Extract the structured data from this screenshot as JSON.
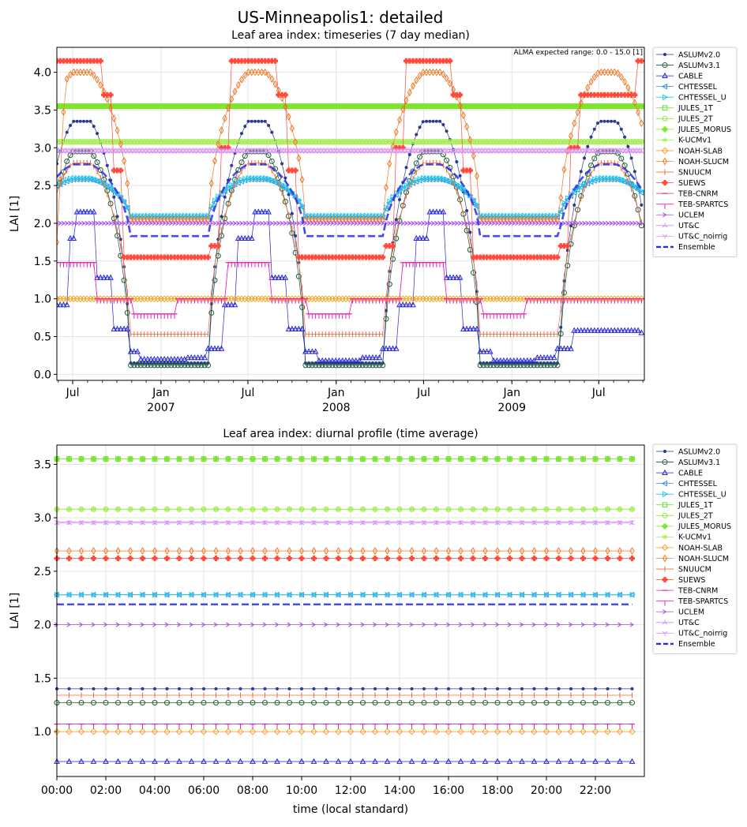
{
  "figure": {
    "title": "US-Minneapolis1: detailed"
  },
  "chart_data": [
    {
      "type": "line",
      "title": "Leaf area index: timeseries (7 day median)",
      "xlabel": "",
      "ylabel": "LAI [1]",
      "annotation": "ALMA expected range: 0.0 - 15.0 [1]",
      "xlim": [
        "2006-05-29",
        "2009-10-04"
      ],
      "ylim": [
        -0.08,
        4.33
      ],
      "yticks": [
        0.0,
        0.5,
        1.0,
        1.5,
        2.0,
        2.5,
        3.0,
        3.5,
        4.0
      ],
      "ytick_labels": [
        "0.0",
        "0.5",
        "1.0",
        "1.5",
        "2.0",
        "2.5",
        "3.0",
        "3.5",
        "4.0"
      ],
      "xtick_labels": [
        {
          "date": "2006-07-01",
          "line1": "Jul",
          "line2": ""
        },
        {
          "date": "2007-01-01",
          "line1": "Jan",
          "line2": "2007"
        },
        {
          "date": "2007-07-01",
          "line1": "Jul",
          "line2": ""
        },
        {
          "date": "2008-01-01",
          "line1": "Jan",
          "line2": "2008"
        },
        {
          "date": "2008-07-01",
          "line1": "Jul",
          "line2": ""
        },
        {
          "date": "2009-01-01",
          "line1": "Jan",
          "line2": "2009"
        },
        {
          "date": "2009-07-01",
          "line1": "Jul",
          "line2": ""
        }
      ],
      "minor_ticks_monthly": true,
      "grid": true,
      "legend": "outside-right",
      "series": [
        {
          "name": "ASLUMv2.0",
          "color": "#2b3a8f",
          "marker": "dot",
          "seasonal": {
            "summer": 3.35,
            "winter": 0.15,
            "peak_early": 3.45
          }
        },
        {
          "name": "ASLUMv3.1",
          "color": "#1e5c3a",
          "marker": "circle",
          "seasonal": {
            "summer": 2.95,
            "winter": 0.12,
            "start": 2.5
          }
        },
        {
          "name": "CABLE",
          "color": "#2323d6",
          "marker": "triangle-up",
          "steps": [
            {
              "from": "2006-05-29",
              "v": 0.92
            },
            {
              "from": "2006-06-22",
              "v": 1.8
            },
            {
              "from": "2006-07-10",
              "v": 2.15
            },
            {
              "from": "2006-08-15",
              "v": 1.28
            },
            {
              "from": "2006-09-20",
              "v": 0.6
            },
            {
              "from": "2006-10-25",
              "v": 0.3
            },
            {
              "from": "2006-11-20",
              "v": 0.2
            },
            {
              "from": "2007-02-20",
              "v": 0.22
            },
            {
              "from": "2007-04-05",
              "v": 0.34
            },
            {
              "from": "2007-05-10",
              "v": 0.92
            },
            {
              "from": "2007-06-10",
              "v": 1.8
            },
            {
              "from": "2007-07-10",
              "v": 2.15
            },
            {
              "from": "2007-08-15",
              "v": 1.28
            },
            {
              "from": "2007-09-20",
              "v": 0.6
            },
            {
              "from": "2007-10-25",
              "v": 0.3
            },
            {
              "from": "2007-11-20",
              "v": 0.18
            },
            {
              "from": "2008-02-20",
              "v": 0.22
            },
            {
              "from": "2008-04-05",
              "v": 0.34
            },
            {
              "from": "2008-05-10",
              "v": 0.92
            },
            {
              "from": "2008-06-10",
              "v": 1.8
            },
            {
              "from": "2008-07-10",
              "v": 2.15
            },
            {
              "from": "2008-08-15",
              "v": 1.28
            },
            {
              "from": "2008-09-20",
              "v": 0.6
            },
            {
              "from": "2008-10-25",
              "v": 0.3
            },
            {
              "from": "2008-11-20",
              "v": 0.18
            },
            {
              "from": "2009-02-20",
              "v": 0.22
            },
            {
              "from": "2009-04-05",
              "v": 0.34
            },
            {
              "from": "2009-05-10",
              "v": 0.58
            },
            {
              "from": "2009-09-25",
              "v": 0.55
            }
          ]
        },
        {
          "name": "CHTESSEL",
          "color": "#2e8fd6",
          "marker": "triangle-left",
          "seasonal": {
            "summer": 2.58,
            "winter": 2.08
          }
        },
        {
          "name": "CHTESSEL_U",
          "color": "#1ec8f0",
          "marker": "triangle-right",
          "seasonal": {
            "summer": 2.6,
            "winter": 2.1
          }
        },
        {
          "name": "JULES_1T",
          "color": "#55e61e",
          "marker": "square",
          "constant": 3.55
        },
        {
          "name": "JULES_2T",
          "color": "#8ee63c",
          "marker": "circle",
          "constant": 3.08
        },
        {
          "name": "JULES_MORUS",
          "color": "#7ee628",
          "marker": "plus-filled",
          "constant": 3.55
        },
        {
          "name": "K-UCMv1",
          "color": "#a8f050",
          "marker": "star",
          "constant": 3.08
        },
        {
          "name": "NOAH-SLAB",
          "color": "#f5a623",
          "marker": "diamond",
          "constant": 1.0
        },
        {
          "name": "NOAH-SLUCM",
          "color": "#f07a28",
          "marker": "thin-diamond",
          "seasonal": {
            "summer": 4.0,
            "winter": 2.05,
            "start": 1.75
          }
        },
        {
          "name": "SNUUCM",
          "color": "#f06a3a",
          "marker": "vline",
          "seasonal": {
            "summer": 2.8,
            "winter": 0.53
          }
        },
        {
          "name": "SUEWS",
          "color": "#ff4a3a",
          "marker": "plus-filled",
          "steps": [
            {
              "from": "2006-05-29",
              "v": 4.15
            },
            {
              "from": "2006-09-01",
              "v": 3.7
            },
            {
              "from": "2006-09-20",
              "v": 2.7
            },
            {
              "from": "2006-10-10",
              "v": 1.55
            },
            {
              "from": "2007-04-10",
              "v": 1.7
            },
            {
              "from": "2007-05-01",
              "v": 3.0
            },
            {
              "from": "2007-05-25",
              "v": 4.15
            },
            {
              "from": "2007-09-01",
              "v": 3.7
            },
            {
              "from": "2007-09-20",
              "v": 2.7
            },
            {
              "from": "2007-10-10",
              "v": 1.55
            },
            {
              "from": "2008-04-10",
              "v": 1.7
            },
            {
              "from": "2008-05-01",
              "v": 3.0
            },
            {
              "from": "2008-05-25",
              "v": 4.15
            },
            {
              "from": "2008-09-01",
              "v": 3.7
            },
            {
              "from": "2008-09-20",
              "v": 2.7
            },
            {
              "from": "2008-10-10",
              "v": 1.55
            },
            {
              "from": "2009-04-10",
              "v": 1.7
            },
            {
              "from": "2009-05-01",
              "v": 3.0
            },
            {
              "from": "2009-05-20",
              "v": 3.7
            },
            {
              "from": "2009-09-15",
              "v": 4.15
            }
          ]
        },
        {
          "name": "TEB-CNRM",
          "color": "#e6287a",
          "marker": "hline",
          "steps": [
            {
              "from": "2006-05-29",
              "v": 1.48
            },
            {
              "from": "2006-08-15",
              "v": 1.0
            },
            {
              "from": "2006-11-01",
              "v": 0.8
            },
            {
              "from": "2007-02-01",
              "v": 1.0
            },
            {
              "from": "2007-05-15",
              "v": 1.48
            },
            {
              "from": "2007-08-15",
              "v": 1.0
            },
            {
              "from": "2007-11-01",
              "v": 0.8
            },
            {
              "from": "2008-02-01",
              "v": 1.0
            },
            {
              "from": "2008-05-15",
              "v": 1.48
            },
            {
              "from": "2008-08-15",
              "v": 1.0
            },
            {
              "from": "2008-11-01",
              "v": 0.8
            },
            {
              "from": "2009-02-01",
              "v": 1.0
            }
          ]
        },
        {
          "name": "TEB-SPARTCS",
          "color": "#e61ec8",
          "marker": "tick-down",
          "steps": [
            {
              "from": "2006-05-29",
              "v": 1.48
            },
            {
              "from": "2006-08-15",
              "v": 1.0
            },
            {
              "from": "2006-11-01",
              "v": 0.8
            },
            {
              "from": "2007-02-01",
              "v": 1.0
            },
            {
              "from": "2007-05-15",
              "v": 1.48
            },
            {
              "from": "2007-08-15",
              "v": 1.0
            },
            {
              "from": "2007-11-01",
              "v": 0.8
            },
            {
              "from": "2008-02-01",
              "v": 1.0
            },
            {
              "from": "2008-05-15",
              "v": 1.48
            },
            {
              "from": "2008-08-15",
              "v": 1.0
            },
            {
              "from": "2008-11-01",
              "v": 0.8
            },
            {
              "from": "2009-02-01",
              "v": 1.0
            }
          ]
        },
        {
          "name": "UCLEM",
          "color": "#a64ee6",
          "marker": "chevron-right",
          "constant": 2.0
        },
        {
          "name": "UT&C",
          "color": "#c88ef0",
          "marker": "tri-up",
          "constant": 2.95
        },
        {
          "name": "UT&C_noirrig",
          "color": "#e08ef0",
          "marker": "tri-down",
          "constant": 2.97
        },
        {
          "name": "Ensemble",
          "color": "#2a2ae6",
          "marker": "dashed",
          "seasonal": {
            "summer": 2.78,
            "winter": 1.83
          }
        }
      ]
    },
    {
      "type": "line",
      "title": "Leaf area index: diurnal profile (time average)",
      "xlabel": "time (local standard)",
      "ylabel": "LAI [1]",
      "xlim": [
        0,
        24
      ],
      "ylim": [
        0.58,
        3.68
      ],
      "yticks": [
        1.0,
        1.5,
        2.0,
        2.5,
        3.0,
        3.5
      ],
      "ytick_labels": [
        "1.0",
        "1.5",
        "2.0",
        "2.5",
        "3.0",
        "3.5"
      ],
      "xticks": [
        0,
        2,
        4,
        6,
        8,
        10,
        12,
        14,
        16,
        18,
        20,
        22
      ],
      "xtick_labels": [
        "00:00",
        "02:00",
        "04:00",
        "06:00",
        "08:00",
        "10:00",
        "12:00",
        "14:00",
        "16:00",
        "18:00",
        "20:00",
        "22:00"
      ],
      "grid": true,
      "legend": "outside-right",
      "series": [
        {
          "name": "ASLUMv2.0",
          "value": 1.4
        },
        {
          "name": "ASLUMv3.1",
          "value": 1.27
        },
        {
          "name": "CABLE",
          "value": 0.72
        },
        {
          "name": "CHTESSEL",
          "value": 2.28
        },
        {
          "name": "CHTESSEL_U",
          "value": 2.28
        },
        {
          "name": "JULES_1T",
          "value": 3.55
        },
        {
          "name": "JULES_2T",
          "value": 3.08
        },
        {
          "name": "JULES_MORUS",
          "value": 3.55
        },
        {
          "name": "K-UCMv1",
          "value": 3.08
        },
        {
          "name": "NOAH-SLAB",
          "value": 1.0
        },
        {
          "name": "NOAH-SLUCM",
          "value": 2.69
        },
        {
          "name": "SNUUCM",
          "value": 1.34
        },
        {
          "name": "SUEWS",
          "value": 2.62
        },
        {
          "name": "TEB-CNRM",
          "value": 1.07
        },
        {
          "name": "TEB-SPARTCS",
          "value": 1.07
        },
        {
          "name": "UCLEM",
          "value": 2.0
        },
        {
          "name": "UT&C",
          "value": 2.95
        },
        {
          "name": "UT&C_noirrig",
          "value": 2.96
        },
        {
          "name": "Ensemble",
          "value": 2.19
        }
      ]
    }
  ]
}
